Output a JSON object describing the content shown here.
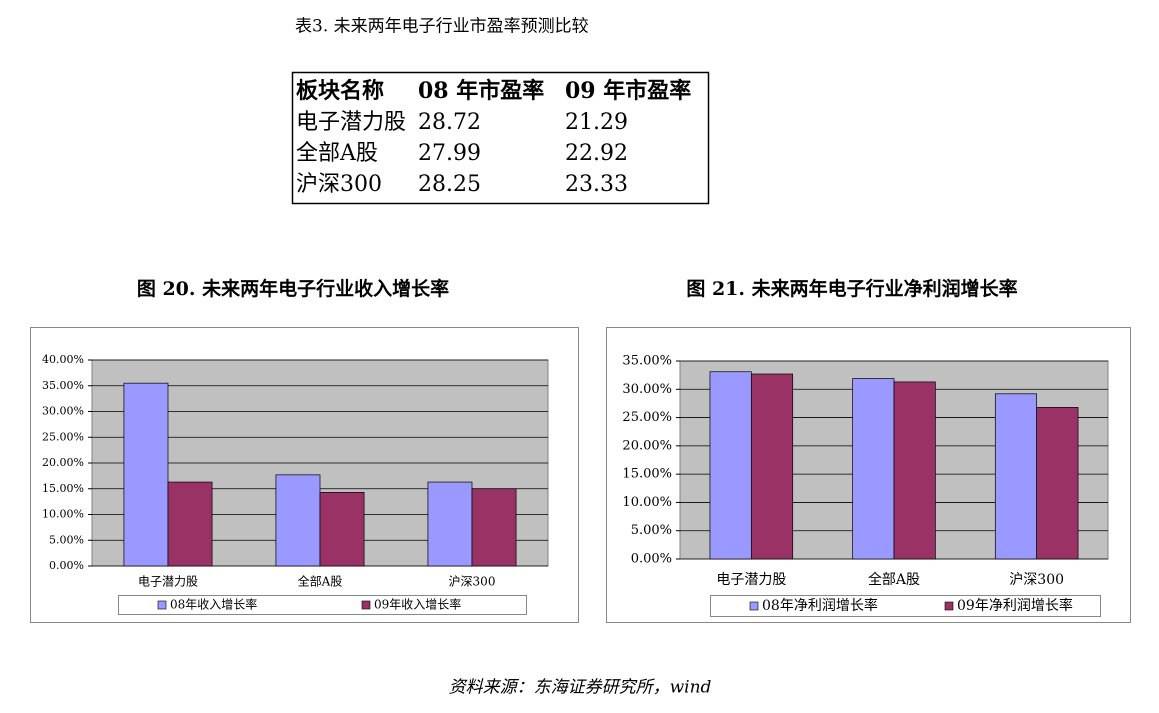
{
  "table_title": "表3.   未来两年电子行业市盈率预测比较",
  "table": {
    "header": [
      "板块名称",
      "08 年市盈率",
      "09 年市盈率"
    ],
    "rows": [
      [
        "电子潜力股",
        28.72,
        21.29
      ],
      [
        "全部A股",
        27.99,
        22.92
      ],
      [
        "沪深300",
        28.25,
        23.33
      ]
    ]
  },
  "chart_data": [
    {
      "type": "bar",
      "title": "图 20.  未来两年电子行业收入增长率",
      "categories": [
        "电子潜力股",
        "全部A股",
        "沪深300"
      ],
      "series": [
        {
          "name": "08年收入增长率",
          "color": "#9999ff",
          "values": [
            35.5,
            17.7,
            16.3
          ]
        },
        {
          "name": "09年收入增长率",
          "color": "#993366",
          "values": [
            16.3,
            14.3,
            15.0
          ]
        }
      ],
      "ylim": [
        0,
        40
      ],
      "yticks": [
        {
          "value": 0,
          "label": "0.00%"
        },
        {
          "value": 5,
          "label": "5.00%"
        },
        {
          "value": 10,
          "label": "10.00%"
        },
        {
          "value": 15,
          "label": "15.00%"
        },
        {
          "value": 20,
          "label": "20.00%"
        },
        {
          "value": 25,
          "label": "25.00%"
        },
        {
          "value": 30,
          "label": "30.00%"
        },
        {
          "value": 35,
          "label": "35.00%"
        },
        {
          "value": 40,
          "label": "40.00%"
        }
      ],
      "grid": true,
      "legend": "bottom"
    },
    {
      "type": "bar",
      "title": "图 21.  未来两年电子行业净利润增长率",
      "categories": [
        "电子潜力股",
        "全部A股",
        "沪深300"
      ],
      "series": [
        {
          "name": "08年净利润增长率",
          "color": "#9999ff",
          "values": [
            33.1,
            31.9,
            29.2
          ]
        },
        {
          "name": "09年净利润增长率",
          "color": "#993366",
          "values": [
            32.7,
            31.3,
            26.8
          ]
        }
      ],
      "ylim": [
        0,
        35
      ],
      "yticks": [
        {
          "value": 0,
          "label": "0.00%"
        },
        {
          "value": 5,
          "label": "5.00%"
        },
        {
          "value": 10,
          "label": "10.00%"
        },
        {
          "value": 15,
          "label": "15.00%"
        },
        {
          "value": 20,
          "label": "20.00%"
        },
        {
          "value": 25,
          "label": "25.00%"
        },
        {
          "value": 30,
          "label": "30.00%"
        },
        {
          "value": 35,
          "label": "35.00%"
        }
      ],
      "grid": true,
      "legend": "bottom"
    }
  ],
  "source": "资料来源：东海证券研究所，wind"
}
